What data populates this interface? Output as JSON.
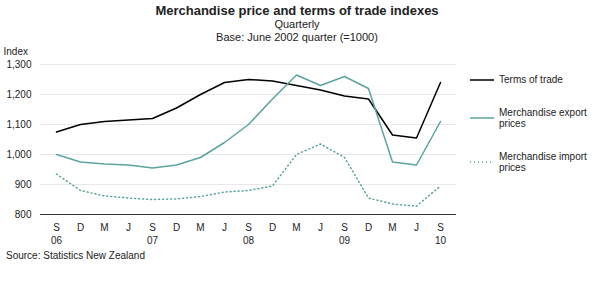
{
  "chart_data": {
    "type": "line",
    "title": "Merchandise price and terms of trade indexes",
    "subtitle": [
      "Quarterly",
      "Base: June 2002 quarter (=1000)"
    ],
    "source": "Source: Statistics New Zealand",
    "ylabel": "Index",
    "categories": [
      "S",
      "D",
      "M",
      "J",
      "S",
      "D",
      "M",
      "J",
      "S",
      "D",
      "M",
      "J",
      "S",
      "D",
      "M",
      "J",
      "S"
    ],
    "annotations": [
      {
        "text": "06",
        "x": 0
      },
      {
        "text": "07",
        "x": 4
      },
      {
        "text": "08",
        "x": 8
      },
      {
        "text": "09",
        "x": 12
      },
      {
        "text": "10",
        "x": 16
      }
    ],
    "series": [
      {
        "name": "Terms of trade",
        "color": "#000000",
        "line_style": "solid",
        "values": [
          1075,
          1100,
          1110,
          1115,
          1120,
          1155,
          1200,
          1240,
          1250,
          1245,
          1230,
          1215,
          1195,
          1185,
          1065,
          1055,
          1240
        ]
      },
      {
        "name": "Merchandise export prices",
        "color": "#5ba3a0",
        "line_style": "solid",
        "values": [
          1000,
          975,
          968,
          965,
          955,
          965,
          990,
          1040,
          1100,
          1185,
          1265,
          1230,
          1260,
          1220,
          975,
          965,
          1110
        ]
      },
      {
        "name": "Merchandise import prices",
        "color": "#5ba3a0",
        "line_style": "dotted",
        "values": [
          935,
          880,
          862,
          855,
          850,
          852,
          860,
          875,
          880,
          895,
          1000,
          1035,
          990,
          855,
          835,
          828,
          895
        ]
      }
    ],
    "ylim": [
      800,
      1300
    ],
    "yticks": [
      800,
      900,
      1000,
      1100,
      1200,
      1300
    ],
    "grid": true,
    "legend": "right"
  }
}
